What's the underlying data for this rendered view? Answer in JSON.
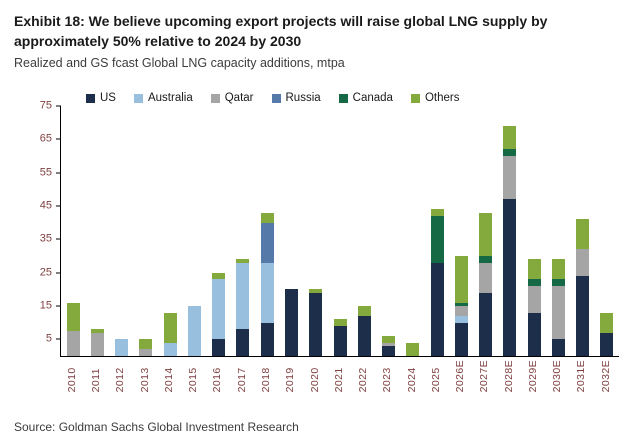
{
  "header": {
    "title": "Exhibit 18: We believe upcoming export projects will raise global LNG supply by approximately 50% relative to 2024 by 2030",
    "subtitle": "Realized and GS fcast Global LNG capacity additions, mtpa"
  },
  "footer": {
    "source": "Source: Goldman Sachs Global Investment Research"
  },
  "colors": {
    "axis_labels": "#7f3f3f",
    "axis_line": "#000000",
    "title_text": "#1a1a1a",
    "subtitle_text": "#3c3c3c",
    "source_text": "#3c3c3c"
  },
  "chart_data": {
    "type": "bar",
    "stacked": true,
    "title": "Realized and GS fcast Global LNG capacity additions, mtpa",
    "xlabel": "",
    "ylabel": "mtpa",
    "ylim": [
      0,
      75
    ],
    "yticks": [
      5,
      15,
      25,
      35,
      45,
      55,
      65,
      75
    ],
    "grid": false,
    "legend_position": "top",
    "categories": [
      "2010",
      "2011",
      "2012",
      "2013",
      "2014",
      "2015",
      "2016",
      "2017",
      "2018",
      "2019",
      "2020",
      "2021",
      "2022",
      "2023",
      "2024",
      "2025",
      "2026E",
      "2027E",
      "2028E",
      "2029E",
      "2030E",
      "2031E",
      "2032E"
    ],
    "series": [
      {
        "name": "US",
        "color": "#1c2e4a",
        "values": [
          0,
          0,
          0,
          0,
          0,
          0,
          5,
          8,
          10,
          20,
          19,
          9,
          12,
          3,
          0,
          28,
          10,
          19,
          47,
          13,
          5,
          24,
          7
        ]
      },
      {
        "name": "Australia",
        "color": "#98bfdd",
        "values": [
          0,
          0,
          5,
          0,
          4,
          15,
          18,
          20,
          18,
          0,
          0,
          0,
          0,
          0,
          0,
          0,
          2,
          0,
          0,
          0,
          0,
          0,
          0
        ]
      },
      {
        "name": "Qatar",
        "color": "#a5a5a5",
        "values": [
          7.5,
          7,
          0,
          2,
          0,
          0,
          0,
          0,
          0,
          0,
          0,
          0,
          0,
          1,
          0,
          0,
          3,
          9,
          13,
          8,
          16,
          8,
          0
        ]
      },
      {
        "name": "Russia",
        "color": "#5579a8",
        "values": [
          0,
          0,
          0,
          0,
          0,
          0,
          0,
          0,
          12,
          0,
          0,
          0,
          0,
          0,
          0,
          0,
          0,
          0,
          0,
          0,
          0,
          0,
          0
        ]
      },
      {
        "name": "Canada",
        "color": "#156945",
        "values": [
          0,
          0,
          0,
          0,
          0,
          0,
          0,
          0,
          0,
          0,
          0,
          0,
          0,
          0,
          0,
          14,
          1,
          2,
          2,
          2,
          2,
          0,
          0
        ]
      },
      {
        "name": "Others",
        "color": "#84a93d",
        "values": [
          8.5,
          1,
          0,
          3,
          9,
          0,
          2,
          1,
          3,
          0,
          1,
          2,
          3,
          2,
          4,
          2,
          14,
          13,
          7,
          6,
          6,
          9,
          6
        ]
      }
    ]
  }
}
